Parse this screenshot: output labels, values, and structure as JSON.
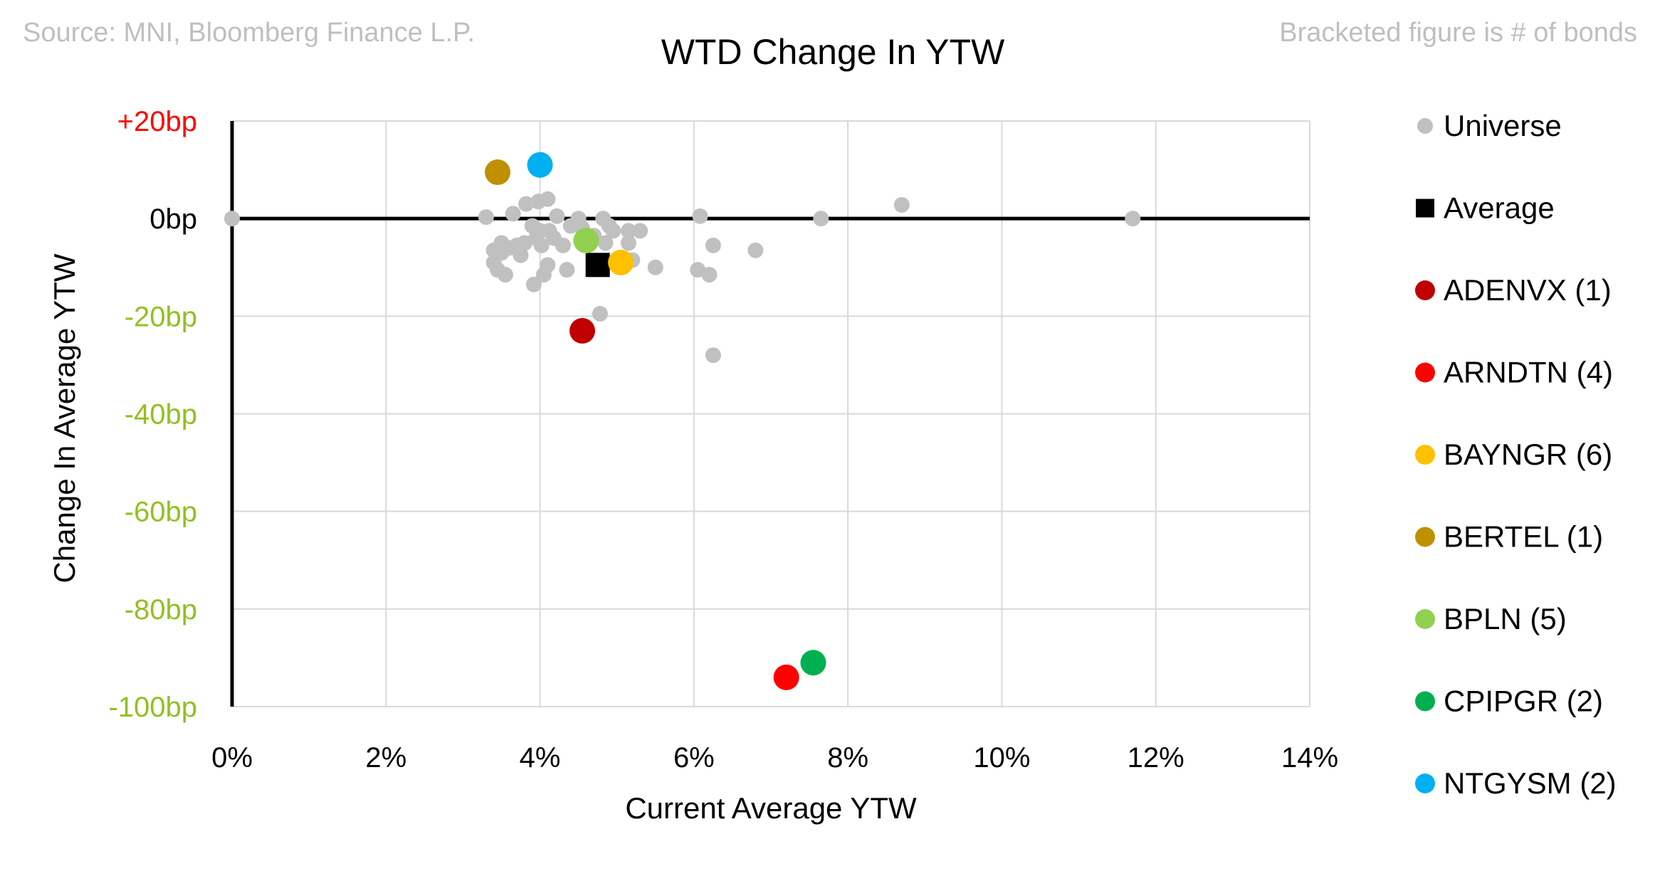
{
  "header": {
    "source_note": "Source: MNI, Bloomberg Finance L.P.",
    "bracket_note": "Bracketed figure is # of bonds"
  },
  "chart_data": {
    "type": "scatter",
    "title": "WTD Change In YTW",
    "xlabel": "Current Average YTW",
    "ylabel": "Change In Average YTW",
    "xlim": [
      0,
      14
    ],
    "ylim": [
      -100,
      20
    ],
    "x_ticks": [
      {
        "value": 0,
        "label": "0%"
      },
      {
        "value": 2,
        "label": "2%"
      },
      {
        "value": 4,
        "label": "4%"
      },
      {
        "value": 6,
        "label": "6%"
      },
      {
        "value": 8,
        "label": "8%"
      },
      {
        "value": 10,
        "label": "10%"
      },
      {
        "value": 12,
        "label": "12%"
      },
      {
        "value": 14,
        "label": "14%"
      }
    ],
    "y_ticks": [
      {
        "value": 20,
        "label": "+20bp",
        "color": "#ff0000"
      },
      {
        "value": 0,
        "label": "0bp",
        "color": "#000000"
      },
      {
        "value": -20,
        "label": "-20bp",
        "color": "#92c01f"
      },
      {
        "value": -40,
        "label": "-40bp",
        "color": "#92c01f"
      },
      {
        "value": -60,
        "label": "-60bp",
        "color": "#92c01f"
      },
      {
        "value": -80,
        "label": "-80bp",
        "color": "#92c01f"
      },
      {
        "value": -100,
        "label": "-100bp",
        "color": "#92c01f"
      }
    ],
    "grid": true,
    "legend_position": "right",
    "universe": {
      "name": "Universe",
      "color": "#c0c0c0",
      "points": [
        {
          "x": 0.0,
          "y": 0.0
        },
        {
          "x": 3.3,
          "y": 0.3
        },
        {
          "x": 3.4,
          "y": -6.5
        },
        {
          "x": 3.4,
          "y": -9.0
        },
        {
          "x": 3.45,
          "y": -10.5
        },
        {
          "x": 3.5,
          "y": -5.0
        },
        {
          "x": 3.5,
          "y": -7.0
        },
        {
          "x": 3.55,
          "y": -11.5
        },
        {
          "x": 3.6,
          "y": -6.0
        },
        {
          "x": 3.65,
          "y": 1.0
        },
        {
          "x": 3.7,
          "y": -5.5
        },
        {
          "x": 3.75,
          "y": -7.5
        },
        {
          "x": 3.8,
          "y": -5.0
        },
        {
          "x": 3.82,
          "y": 3.0
        },
        {
          "x": 3.9,
          "y": -1.5
        },
        {
          "x": 3.92,
          "y": -13.5
        },
        {
          "x": 3.95,
          "y": -4.0
        },
        {
          "x": 3.98,
          "y": 3.5
        },
        {
          "x": 4.0,
          "y": -2.5
        },
        {
          "x": 4.02,
          "y": -5.5
        },
        {
          "x": 4.05,
          "y": -11.5
        },
        {
          "x": 4.1,
          "y": 4.0
        },
        {
          "x": 4.1,
          "y": -9.5
        },
        {
          "x": 4.12,
          "y": -2.5
        },
        {
          "x": 4.18,
          "y": -4.0
        },
        {
          "x": 4.22,
          "y": 0.5
        },
        {
          "x": 4.3,
          "y": -5.5
        },
        {
          "x": 4.35,
          "y": -10.5
        },
        {
          "x": 4.4,
          "y": -1.5
        },
        {
          "x": 4.5,
          "y": 0.0
        },
        {
          "x": 4.55,
          "y": -2.0
        },
        {
          "x": 4.6,
          "y": -4.0
        },
        {
          "x": 4.7,
          "y": -3.5
        },
        {
          "x": 4.78,
          "y": -19.5
        },
        {
          "x": 4.82,
          "y": 0.0
        },
        {
          "x": 4.85,
          "y": -5.0
        },
        {
          "x": 4.9,
          "y": -1.5
        },
        {
          "x": 4.95,
          "y": -2.5
        },
        {
          "x": 5.05,
          "y": -8.5
        },
        {
          "x": 5.15,
          "y": -2.5
        },
        {
          "x": 5.15,
          "y": -5.0
        },
        {
          "x": 5.2,
          "y": -8.5
        },
        {
          "x": 5.3,
          "y": -2.5
        },
        {
          "x": 5.5,
          "y": -10.0
        },
        {
          "x": 6.05,
          "y": -10.5
        },
        {
          "x": 6.08,
          "y": 0.5
        },
        {
          "x": 6.2,
          "y": -11.5
        },
        {
          "x": 6.25,
          "y": -5.5
        },
        {
          "x": 6.25,
          "y": -28.0
        },
        {
          "x": 6.8,
          "y": -6.5
        },
        {
          "x": 7.65,
          "y": 0.0
        },
        {
          "x": 8.7,
          "y": 2.8
        },
        {
          "x": 11.7,
          "y": 0.0
        }
      ]
    },
    "average": {
      "name": "Average",
      "x": 4.75,
      "y": -9.5,
      "color": "#000000"
    },
    "series": [
      {
        "name": "ADENVX",
        "count": "(1)",
        "color": "#c00000",
        "x": 4.55,
        "y": -23.0
      },
      {
        "name": "ARNDTN",
        "count": "(4)",
        "color": "#ff0000",
        "x": 7.2,
        "y": -94.0
      },
      {
        "name": "BAYNGR",
        "count": "(6)",
        "color": "#ffc000",
        "x": 5.05,
        "y": -9.0
      },
      {
        "name": "BERTEL",
        "count": "(1)",
        "color": "#bf9000",
        "x": 3.45,
        "y": 9.5
      },
      {
        "name": "BPLN",
        "count": "(5)",
        "color": "#92d050",
        "x": 4.6,
        "y": -4.5
      },
      {
        "name": "CPIPGR",
        "count": "(2)",
        "color": "#00b050",
        "x": 7.55,
        "y": -91.0
      },
      {
        "name": "NTGYSM",
        "count": "(2)",
        "color": "#00b0f0",
        "x": 4.0,
        "y": 11.0
      }
    ]
  }
}
